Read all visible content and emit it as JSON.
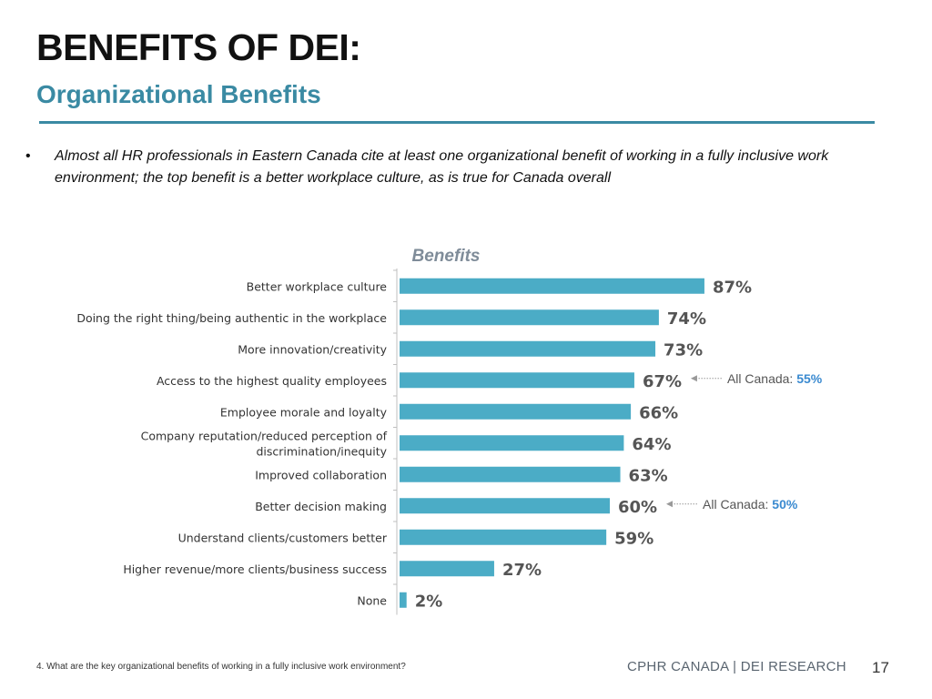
{
  "header": {
    "title": "BENEFITS OF DEI:",
    "subtitle": "Organizational Benefits"
  },
  "bullet": {
    "marker": "•",
    "text": "Almost all HR professionals in Eastern Canada cite at least one organizational benefit of working in a fully inclusive work environment; the top benefit is a better workplace culture, as is true for Canada overall"
  },
  "chart_data": {
    "type": "bar",
    "orientation": "horizontal",
    "title": "Benefits",
    "categories": [
      "Better workplace culture",
      "Doing the right thing/being authentic in the workplace",
      "More innovation/creativity",
      "Access to the highest quality employees",
      "Employee morale and loyalty",
      "Company reputation/reduced perception of discrimination/inequity",
      "Improved collaboration",
      "Better decision making",
      "Understand clients/customers better",
      "Higher revenue/more clients/business success",
      "None"
    ],
    "category_lines": [
      [
        "Better workplace culture"
      ],
      [
        "Doing the right thing/being authentic in the workplace"
      ],
      [
        "More innovation/creativity"
      ],
      [
        "Access to the highest quality employees"
      ],
      [
        "Employee morale and loyalty"
      ],
      [
        "Company reputation/reduced perception of",
        "discrimination/inequity"
      ],
      [
        "Improved collaboration"
      ],
      [
        "Better decision making"
      ],
      [
        "Understand clients/customers better"
      ],
      [
        "Higher revenue/more clients/business success"
      ],
      [
        "None"
      ]
    ],
    "values": [
      87,
      74,
      73,
      67,
      66,
      64,
      63,
      60,
      59,
      27,
      2
    ],
    "value_labels": [
      "87%",
      "74%",
      "73%",
      "67%",
      "66%",
      "64%",
      "63%",
      "60%",
      "59%",
      "27%",
      "2%"
    ],
    "bar_color": "#4bacc6",
    "label_color": "#555555",
    "annotations": [
      {
        "category_index": 3,
        "prefix": "All Canada: ",
        "value": "55%"
      },
      {
        "category_index": 7,
        "prefix": "All Canada: ",
        "value": "50%"
      }
    ],
    "annotation_value_color": "#3a8ad0",
    "xlim": [
      0,
      100
    ],
    "grid": false,
    "legend": "none"
  },
  "footer": {
    "footnote": "4. What are the key organizational benefits of working in a fully inclusive work environment?",
    "brand": "CPHR CANADA | DEI RESEARCH",
    "page_number": "17"
  }
}
